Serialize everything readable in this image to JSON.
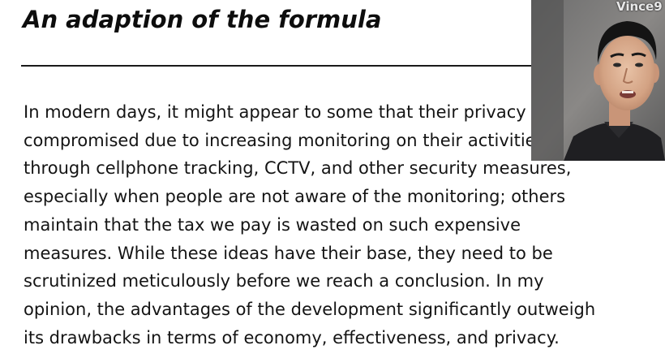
{
  "slide": {
    "title": "An adaption of the formula",
    "body_lines": [
      "In modern days, it might appear to some that their privacy is",
      "compromised due to increasing monitoring on their activities",
      "through cellphone tracking, CCTV, and other security measures,",
      "especially when people are not aware of the monitoring; others",
      "maintain that the tax we pay is wasted on such expensive",
      "measures. While these ideas have their base, they need to be",
      "scrutinized meticulously before we reach a conclusion. In my",
      "opinion, the advantages of the development significantly outweigh",
      "its drawbacks in terms of economy, effectiveness, and privacy."
    ]
  },
  "webcam": {
    "name_label": "Vince9"
  },
  "colors": {
    "background": "#ffffff",
    "text": "#141414",
    "rule": "#1a1a1a"
  }
}
